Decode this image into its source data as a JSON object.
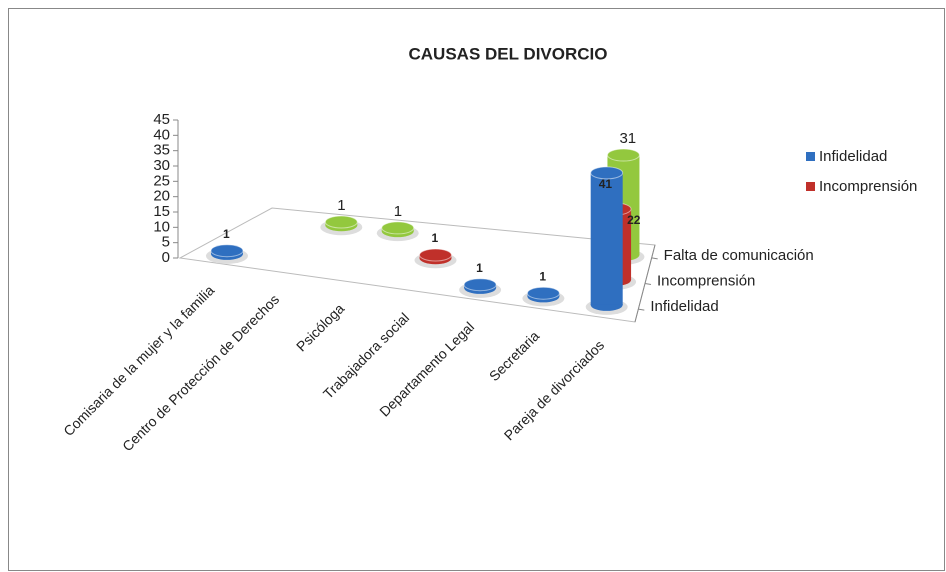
{
  "chart_data": {
    "type": "bar3d",
    "title": "CAUSAS DEL DIVORCIO",
    "categories": [
      "Comisaria de la  mujer y la familia",
      "Centro de Protección de Derechos",
      "Psicóloga",
      "Trabajadora social",
      "Departamento Legal",
      "Secretaria",
      "Pareja de divorciados"
    ],
    "series": [
      {
        "name": "Infidelidad",
        "color": "#2f6fc0",
        "values": [
          1,
          null,
          null,
          null,
          1,
          1,
          41
        ]
      },
      {
        "name": "Incomprensión",
        "color": "#c0302a",
        "values": [
          null,
          null,
          null,
          1,
          null,
          null,
          22
        ]
      },
      {
        "name": "Falta de comunicación",
        "color": "#93c83e",
        "values": [
          null,
          1,
          1,
          null,
          null,
          null,
          31
        ]
      }
    ],
    "legend_series": [
      0,
      1
    ],
    "ylim": [
      0,
      45
    ],
    "yticks": [
      0,
      5,
      10,
      15,
      20,
      25,
      30,
      35,
      40,
      45
    ]
  }
}
